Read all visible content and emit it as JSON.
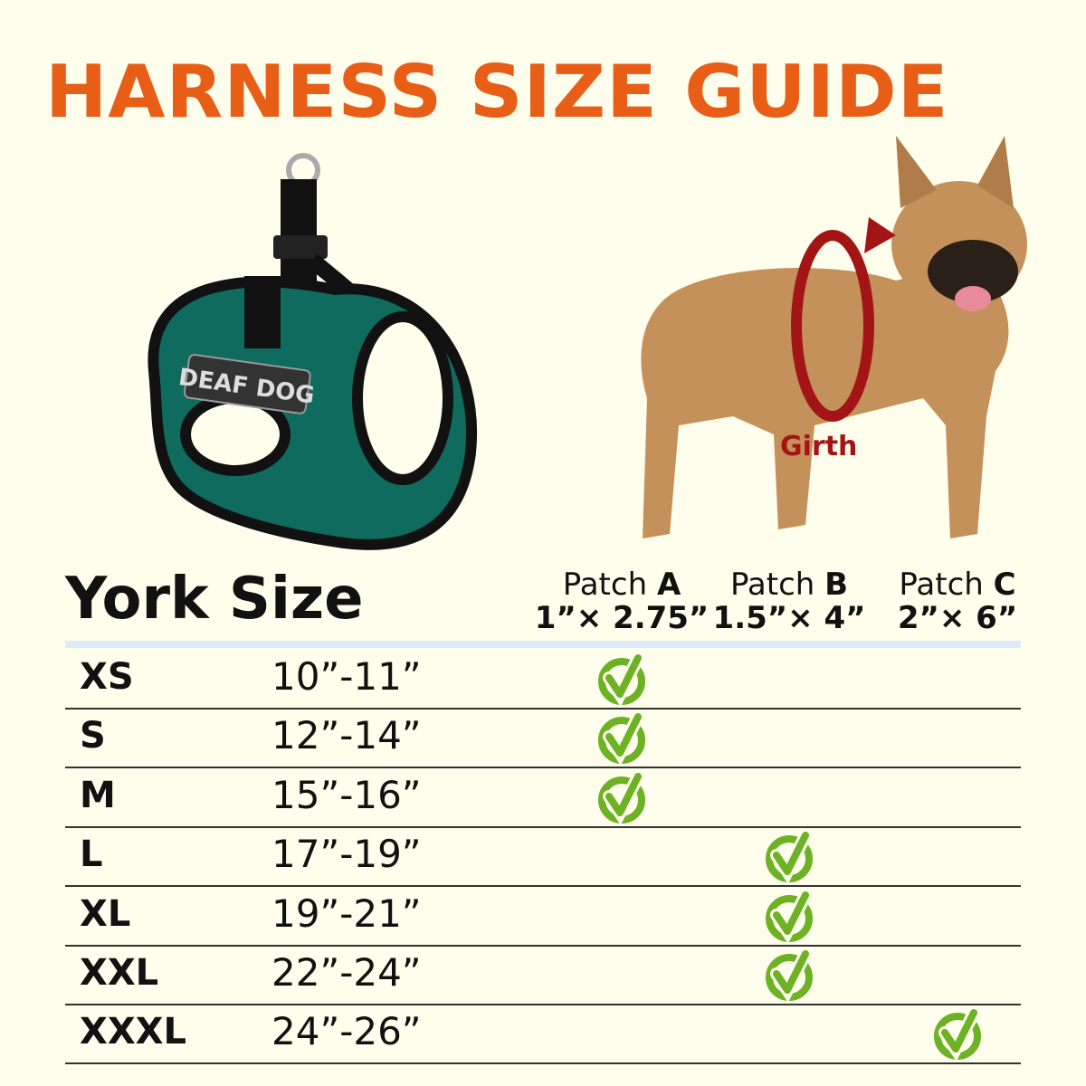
{
  "title": "HARNESS SIZE GUIDE",
  "harness_patch_text": "DEAF DOG",
  "girth_label": "Girth",
  "table": {
    "title": "York Size",
    "patches": [
      {
        "label": "Patch",
        "letter": "A",
        "size": "1”× 2.75”"
      },
      {
        "label": "Patch",
        "letter": "B",
        "size": "1.5”× 4”"
      },
      {
        "label": "Patch",
        "letter": "C",
        "size": "2”× 6”"
      }
    ],
    "rows": [
      {
        "size": "XS",
        "girth": "10”-11”",
        "patch": "A"
      },
      {
        "size": "S",
        "girth": "12”-14”",
        "patch": "A"
      },
      {
        "size": "M",
        "girth": "15”-16”",
        "patch": "A"
      },
      {
        "size": "L",
        "girth": "17”-19”",
        "patch": "B"
      },
      {
        "size": "XL",
        "girth": "19”-21”",
        "patch": "B"
      },
      {
        "size": "XXL",
        "girth": "22”-24”",
        "patch": "B"
      },
      {
        "size": "XXXL",
        "girth": "24”-26”",
        "patch": "C"
      }
    ]
  },
  "colors": {
    "title": "#e85e17",
    "check": "#6cb224",
    "girth_arrow": "#a31515",
    "harness": "#0e6b5e",
    "background": "#fffdeb"
  }
}
